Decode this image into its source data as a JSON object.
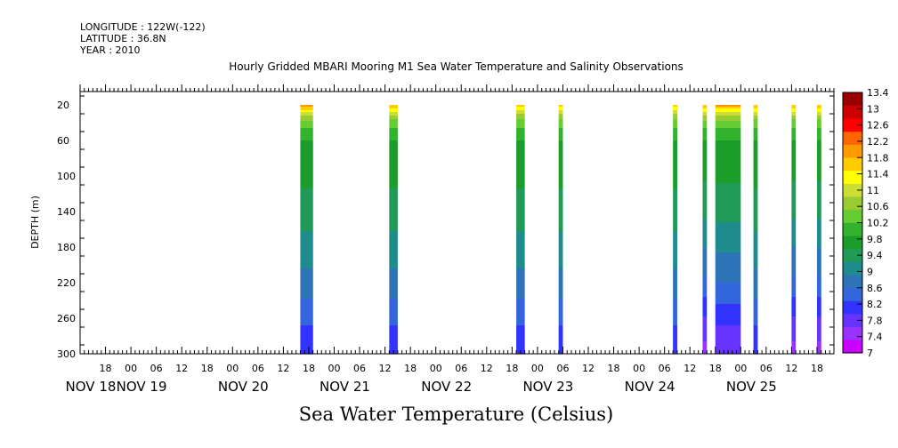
{
  "meta": {
    "longitude": "LONGITUDE : 122W(-122)",
    "latitude": "LATITUDE : 36.8N",
    "year": "YEAR : 2010"
  },
  "chart_data": {
    "type": "heatmap",
    "title": "Hourly Gridded MBARI Mooring M1 Sea Water Temperature and Salinity Observations",
    "xlabel": "Sea Water Temperature (Celsius)",
    "ylabel": "DEPTH (m)",
    "y_axis": {
      "range": [
        300,
        5
      ],
      "inverted": true,
      "ticks": [
        20,
        60,
        100,
        140,
        180,
        220,
        260,
        300
      ]
    },
    "x_axis": {
      "range_hours": [
        "NOV 18 12:00",
        "NOV 25 22:00"
      ],
      "hour_tick_labels": [
        "18",
        "00",
        "06",
        "12",
        "18",
        "00",
        "06",
        "12",
        "18",
        "00",
        "06",
        "12",
        "18",
        "00",
        "06",
        "12",
        "18",
        "00",
        "06",
        "12",
        "18",
        "00",
        "06",
        "12",
        "18",
        "00",
        "06",
        "12",
        "18"
      ],
      "day_labels": [
        "NOV 18",
        "NOV 19",
        "NOV 20",
        "NOV 21",
        "NOV 22",
        "NOV 23",
        "NOV 24",
        "NOV 25"
      ]
    },
    "colorbar": {
      "levels": [
        7,
        7.4,
        7.8,
        8.2,
        8.6,
        9,
        9.4,
        9.8,
        10.2,
        10.6,
        11,
        11.4,
        11.8,
        12.2,
        12.6,
        13,
        13.4
      ],
      "labels": [
        "13.4",
        "13",
        "12.6",
        "12.2",
        "11.8",
        "11.4",
        "11",
        "10.6",
        "10.2",
        "9.8",
        "9.4",
        "9",
        "8.6",
        "8.2",
        "7.8",
        "7.4",
        "7"
      ],
      "colors": [
        "#cc00ff",
        "#9933ff",
        "#6633ff",
        "#3333ff",
        "#3366dd",
        "#2d73b8",
        "#1e8c8c",
        "#1f9a57",
        "#1a9d2a",
        "#33b22d",
        "#66cc33",
        "#99cc33",
        "#ccdd33",
        "#ffff00",
        "#ffcc00",
        "#ff9900",
        "#ff6600",
        "#ff0000",
        "#cc0000",
        "#990000"
      ]
    },
    "profile": {
      "depths": [
        20,
        30,
        40,
        60,
        100,
        140,
        180,
        220,
        260,
        300
      ],
      "temps": [
        12.8,
        11.6,
        10.8,
        10.2,
        9.9,
        9.6,
        9.2,
        8.8,
        8.2,
        7.8
      ]
    },
    "columns": [
      {
        "start": "NOV 20 16:00",
        "end": "NOV 20 19:00",
        "surface": 12.8,
        "bottom": 7.9
      },
      {
        "start": "NOV 21 13:00",
        "end": "NOV 21 15:00",
        "surface": 12.6,
        "bottom": 7.9
      },
      {
        "start": "NOV 22 19:00",
        "end": "NOV 22 21:00",
        "surface": 12.3,
        "bottom": 7.9
      },
      {
        "start": "NOV 23 05:00",
        "end": "NOV 23 06:00",
        "surface": 12.3,
        "bottom": 7.9
      },
      {
        "start": "NOV 24 08:00",
        "end": "NOV 24 09:00",
        "surface": 12.4,
        "bottom": 7.9
      },
      {
        "start": "NOV 24 15:00",
        "end": "NOV 24 16:00",
        "surface": 12.7,
        "bottom": 7.2
      },
      {
        "start": "NOV 24 18:00",
        "end": "NOV 25 00:00",
        "surface": 12.8,
        "bottom": 7.4
      },
      {
        "start": "NOV 25 03:00",
        "end": "NOV 25 04:00",
        "surface": 12.6,
        "bottom": 7.9
      },
      {
        "start": "NOV 25 12:00",
        "end": "NOV 25 13:00",
        "surface": 12.6,
        "bottom": 7.2
      },
      {
        "start": "NOV 25 18:00",
        "end": "NOV 25 19:00",
        "surface": 12.6,
        "bottom": 7.2
      }
    ]
  }
}
